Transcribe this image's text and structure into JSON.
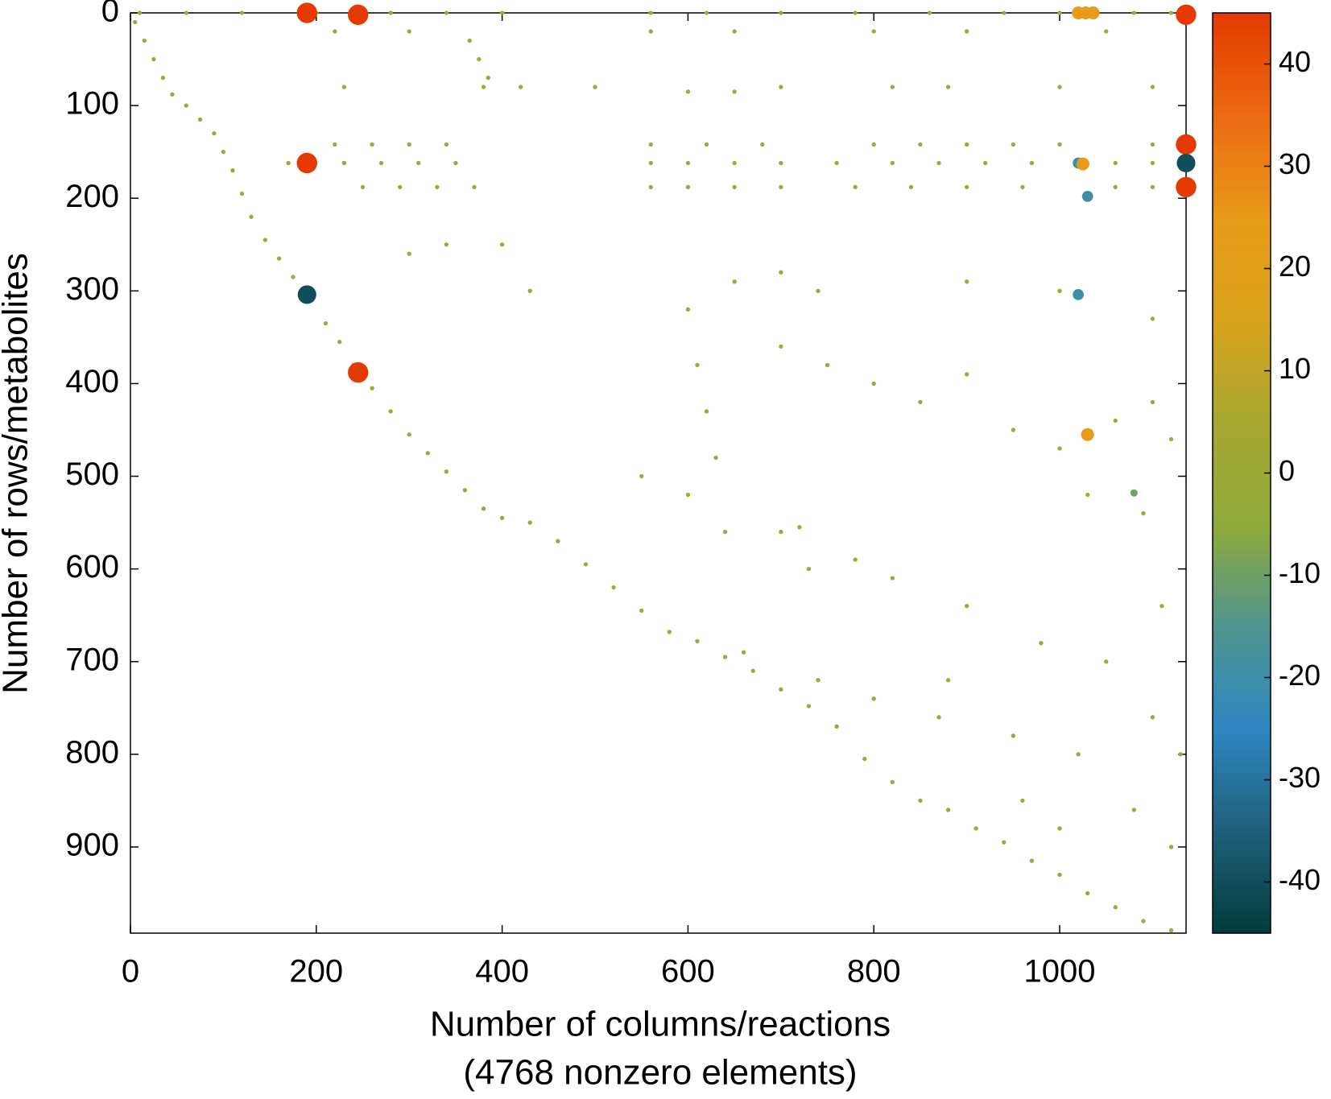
{
  "chart_data": {
    "type": "scatter",
    "xlabel": [
      "Number of columns/reactions",
      "(4768 nonzero elements)"
    ],
    "ylabel": "Number of rows/metabolites",
    "xlim": [
      0,
      1136
    ],
    "ylim": [
      993,
      0
    ],
    "xticks": [
      0,
      200,
      400,
      600,
      800,
      1000
    ],
    "yticks": [
      0,
      100,
      200,
      300,
      400,
      500,
      600,
      700,
      800,
      900
    ],
    "clim": [
      -45,
      45
    ],
    "cticks": [
      -40,
      -30,
      -20,
      -10,
      0,
      10,
      20,
      30,
      40
    ],
    "colormap": [
      "#003c3c",
      "#1f5f7a",
      "#2e86c1",
      "#4f958f",
      "#8faa3a",
      "#a8a832",
      "#d8a21a",
      "#e89a18",
      "#ec6a12",
      "#e43a00"
    ],
    "x": [
      5,
      15,
      25,
      35,
      45,
      60,
      75,
      90,
      100,
      110,
      120,
      130,
      145,
      160,
      175,
      195,
      210,
      225,
      240,
      260,
      280,
      300,
      320,
      340,
      360,
      380,
      400,
      430,
      460,
      490,
      520,
      550,
      580,
      610,
      640,
      670,
      700,
      730,
      760,
      790,
      820,
      850,
      880,
      910,
      940,
      970,
      1000,
      1030,
      1060,
      1090,
      1120,
      10,
      60,
      120,
      200,
      280,
      340,
      400,
      560,
      620,
      700,
      780,
      860,
      940,
      1000,
      1080,
      1120,
      220,
      300,
      560,
      650,
      800,
      900,
      1050,
      230,
      380,
      420,
      500,
      600,
      650,
      700,
      820,
      880,
      1000,
      1100,
      220,
      260,
      300,
      340,
      560,
      620,
      680,
      800,
      850,
      900,
      950,
      1000,
      1100,
      170,
      230,
      270,
      310,
      350,
      560,
      600,
      650,
      700,
      760,
      820,
      870,
      920,
      970,
      1060,
      1100,
      250,
      290,
      330,
      370,
      560,
      600,
      650,
      700,
      780,
      840,
      900,
      960,
      1060,
      1100,
      365,
      375,
      385,
      600,
      610,
      620,
      630,
      400,
      340,
      300,
      430,
      650,
      700,
      740,
      900,
      1000,
      1100,
      700,
      800,
      850,
      900,
      950,
      1000,
      1060,
      1100,
      1120,
      600,
      700,
      780,
      820,
      900,
      980,
      1050,
      1110,
      660,
      740,
      800,
      870,
      950,
      1020,
      1100,
      1000,
      1080,
      1120,
      720,
      640,
      880,
      960,
      1130,
      1030,
      1090,
      550,
      750,
      730,
      1136,
      190,
      245,
      1136,
      1020,
      1028,
      1036,
      190,
      1136,
      1136,
      1136,
      1020,
      1025,
      1030,
      1020,
      190,
      245,
      1030,
      1080
    ],
    "y": [
      10,
      30,
      50,
      70,
      88,
      100,
      115,
      130,
      150,
      170,
      195,
      220,
      245,
      265,
      285,
      310,
      335,
      355,
      380,
      405,
      430,
      455,
      475,
      495,
      515,
      535,
      545,
      550,
      570,
      595,
      620,
      645,
      668,
      678,
      695,
      710,
      730,
      748,
      770,
      805,
      830,
      850,
      860,
      880,
      895,
      915,
      930,
      950,
      965,
      980,
      990,
      0,
      0,
      0,
      0,
      0,
      0,
      0,
      0,
      0,
      0,
      0,
      0,
      0,
      0,
      0,
      0,
      20,
      20,
      20,
      20,
      20,
      20,
      20,
      80,
      80,
      80,
      80,
      85,
      85,
      80,
      80,
      80,
      80,
      80,
      142,
      142,
      142,
      142,
      142,
      142,
      142,
      142,
      142,
      142,
      142,
      142,
      142,
      162,
      162,
      162,
      162,
      162,
      162,
      162,
      162,
      162,
      162,
      162,
      162,
      162,
      162,
      162,
      162,
      188,
      188,
      188,
      188,
      188,
      188,
      188,
      188,
      188,
      188,
      188,
      188,
      188,
      188,
      30,
      50,
      70,
      320,
      380,
      430,
      480,
      250,
      250,
      260,
      300,
      290,
      280,
      300,
      290,
      300,
      330,
      360,
      400,
      420,
      390,
      450,
      470,
      440,
      420,
      460,
      520,
      560,
      590,
      610,
      640,
      680,
      700,
      640,
      690,
      720,
      740,
      760,
      780,
      800,
      760,
      880,
      860,
      900,
      555,
      560,
      720,
      850,
      800,
      520,
      540,
      500,
      380,
      600,
      0,
      0,
      2,
      2,
      0,
      0,
      0,
      162,
      142,
      162,
      188,
      162,
      163,
      198,
      304,
      304,
      388,
      455,
      518
    ],
    "values": [
      2,
      2,
      2,
      2,
      2,
      2,
      2,
      2,
      2,
      2,
      2,
      2,
      2,
      2,
      2,
      2,
      2,
      2,
      2,
      2,
      2,
      2,
      2,
      2,
      2,
      2,
      2,
      2,
      2,
      2,
      2,
      2,
      2,
      2,
      2,
      2,
      2,
      2,
      2,
      2,
      2,
      2,
      2,
      2,
      2,
      2,
      2,
      2,
      2,
      2,
      2,
      2,
      2,
      2,
      2,
      2,
      2,
      2,
      2,
      2,
      2,
      2,
      2,
      2,
      2,
      2,
      2,
      2,
      2,
      2,
      2,
      2,
      2,
      2,
      2,
      2,
      2,
      2,
      2,
      2,
      2,
      2,
      2,
      2,
      2,
      2,
      2,
      2,
      2,
      2,
      2,
      2,
      2,
      2,
      2,
      2,
      2,
      2,
      2,
      2,
      2,
      2,
      2,
      2,
      2,
      2,
      2,
      2,
      2,
      2,
      2,
      2,
      2,
      2,
      2,
      2,
      2,
      2,
      2,
      2,
      2,
      2,
      2,
      2,
      2,
      2,
      2,
      2,
      2,
      2,
      2,
      2,
      2,
      2,
      2,
      2,
      2,
      2,
      2,
      2,
      2,
      2,
      2,
      2,
      2,
      2,
      2,
      2,
      2,
      2,
      2,
      2,
      2,
      2,
      2,
      2,
      2,
      2,
      2,
      2,
      2,
      2,
      2,
      2,
      2,
      2,
      2,
      2,
      2,
      2,
      2,
      2,
      2,
      2,
      2,
      2,
      2,
      2,
      2,
      2,
      2,
      2,
      -30,
      45,
      45,
      45,
      25,
      25,
      25,
      45,
      45,
      -40,
      45,
      -20,
      25,
      -20,
      -20,
      -40,
      45,
      25,
      -10
    ]
  }
}
